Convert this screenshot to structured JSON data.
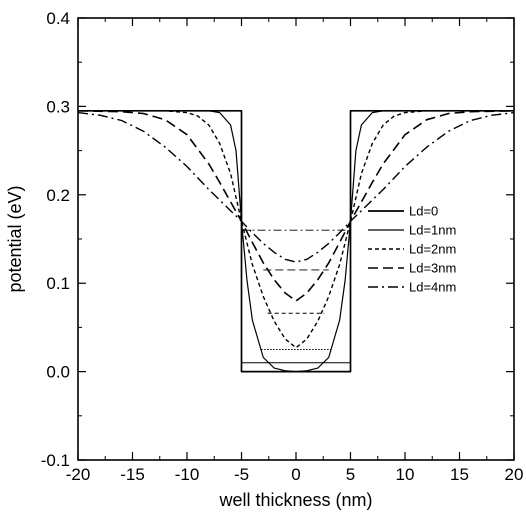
{
  "chart_data": {
    "type": "line",
    "title": "",
    "xlabel": "well thickness (nm)",
    "ylabel": "potential (eV)",
    "xlim": [
      -20,
      20
    ],
    "ylim": [
      -0.1,
      0.4
    ],
    "xticks": [
      -20,
      -15,
      -10,
      -5,
      0,
      5,
      10,
      15,
      20
    ],
    "xtick_labels": [
      "-20",
      "-15",
      "-10",
      "-5",
      "0",
      "5",
      "10",
      "15",
      "20"
    ],
    "yticks": [
      -0.1,
      0.0,
      0.1,
      0.2,
      0.3,
      0.4
    ],
    "ytick_labels": [
      "-0.1",
      "0.0",
      "0.1",
      "0.2",
      "0.3",
      "0.4"
    ],
    "grid": false,
    "legend_position": "right",
    "series": [
      {
        "name": "Ld=0",
        "dash": "solid",
        "ld": 0,
        "x": [
          -20,
          -5,
          -5,
          5,
          5,
          20
        ],
        "y": [
          0.295,
          0.295,
          0.0,
          0.0,
          0.295,
          0.295
        ],
        "level": {
          "x": [
            -5,
            5
          ],
          "y": 0.01
        }
      },
      {
        "name": "Ld=1nm",
        "dash": "solid-thin",
        "ld": 1,
        "x": [
          -20,
          -8,
          -7,
          -6,
          -5.5,
          -5,
          -4.5,
          -4,
          -3,
          -2,
          -1,
          0,
          1,
          2,
          3,
          4,
          4.5,
          5,
          5.5,
          6,
          7,
          8,
          20
        ],
        "y": [
          0.295,
          0.295,
          0.293,
          0.279,
          0.25,
          0.17,
          0.103,
          0.058,
          0.016,
          0.004,
          0.001,
          0.0,
          0.001,
          0.004,
          0.016,
          0.058,
          0.103,
          0.17,
          0.25,
          0.279,
          0.293,
          0.295,
          0.295
        ],
        "level": {
          "x": [
            -3.2,
            3.2
          ],
          "y": 0.025
        }
      },
      {
        "name": "Ld=2nm",
        "dash": "short-dash",
        "ld": 2,
        "x": [
          -20,
          -12,
          -10,
          -9,
          -8,
          -7,
          -6,
          -5,
          -4,
          -3,
          -2,
          -1,
          0,
          1,
          2,
          3,
          4,
          5,
          6,
          7,
          8,
          9,
          10,
          12,
          20
        ],
        "y": [
          0.295,
          0.295,
          0.293,
          0.289,
          0.279,
          0.258,
          0.224,
          0.17,
          0.121,
          0.085,
          0.057,
          0.037,
          0.027,
          0.037,
          0.057,
          0.085,
          0.121,
          0.17,
          0.224,
          0.258,
          0.279,
          0.289,
          0.293,
          0.295,
          0.295
        ],
        "level": {
          "x": [
            -2.6,
            2.6
          ],
          "y": 0.066
        }
      },
      {
        "name": "Ld=3nm",
        "dash": "long-dash",
        "ld": 3,
        "x": [
          -20,
          -16,
          -14,
          -12,
          -10,
          -8,
          -7,
          -6,
          -5,
          -4,
          -3,
          -2,
          -1,
          0,
          1,
          2,
          3,
          4,
          5,
          6,
          7,
          8,
          10,
          12,
          14,
          16,
          20
        ],
        "y": [
          0.295,
          0.294,
          0.292,
          0.285,
          0.268,
          0.235,
          0.214,
          0.192,
          0.17,
          0.146,
          0.123,
          0.104,
          0.089,
          0.08,
          0.089,
          0.104,
          0.123,
          0.146,
          0.17,
          0.192,
          0.214,
          0.235,
          0.268,
          0.285,
          0.292,
          0.294,
          0.295
        ],
        "level": {
          "x": [
            -3.0,
            3.0
          ],
          "y": 0.115
        }
      },
      {
        "name": "Ld=4nm",
        "dash": "dash-dot",
        "ld": 4,
        "x": [
          -20,
          -18,
          -16,
          -14,
          -12,
          -10,
          -8,
          -6,
          -5,
          -4,
          -3,
          -2,
          -1,
          0,
          1,
          2,
          3,
          4,
          5,
          6,
          8,
          10,
          12,
          14,
          16,
          18,
          20
        ],
        "y": [
          0.293,
          0.29,
          0.284,
          0.272,
          0.254,
          0.232,
          0.206,
          0.182,
          0.17,
          0.157,
          0.145,
          0.135,
          0.127,
          0.124,
          0.127,
          0.135,
          0.145,
          0.157,
          0.17,
          0.182,
          0.206,
          0.232,
          0.254,
          0.272,
          0.284,
          0.29,
          0.293
        ],
        "level": {
          "x": [
            -5,
            5
          ],
          "y": 0.16
        }
      }
    ]
  }
}
